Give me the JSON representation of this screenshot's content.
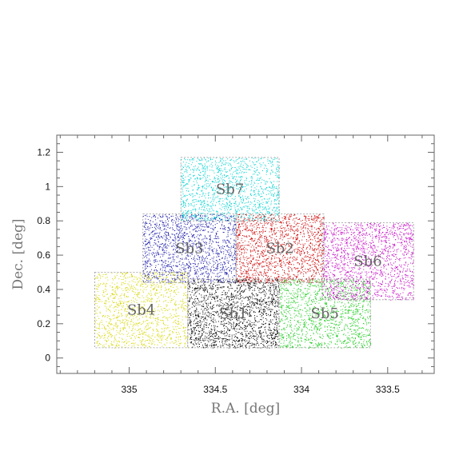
{
  "chart_data": {
    "type": "scatter",
    "title": "",
    "xlabel": "R.A. [deg]",
    "ylabel": "Dec. [deg]",
    "xlim": [
      335.42,
      333.23
    ],
    "ylim": [
      -0.09,
      1.3
    ],
    "x_reversed": true,
    "x_ticks": [
      335,
      334.5,
      334,
      333.5
    ],
    "x_tick_labels": [
      "335",
      "334.5",
      "334",
      "333.5"
    ],
    "y_ticks": [
      0,
      0.2,
      0.4,
      0.6,
      0.8,
      1,
      1.2
    ],
    "y_tick_labels": [
      "0",
      "0.2",
      "0.4",
      "0.6",
      "0.8",
      "1",
      "1.2"
    ],
    "grid": false,
    "fields": [
      {
        "label": "Sb1",
        "ra_range": [
          334.66,
          334.13
        ],
        "dec_range": [
          0.06,
          0.46
        ],
        "color": "#000000",
        "density": 1700
      },
      {
        "label": "Sb2",
        "ra_range": [
          334.38,
          333.87
        ],
        "dec_range": [
          0.44,
          0.84
        ],
        "color": "#cc0000",
        "density": 1500
      },
      {
        "label": "Sb3",
        "ra_range": [
          334.92,
          334.38
        ],
        "dec_range": [
          0.44,
          0.84
        ],
        "color": "#1a1aa8",
        "density": 1500
      },
      {
        "label": "Sb4",
        "ra_range": [
          335.2,
          334.66
        ],
        "dec_range": [
          0.06,
          0.5
        ],
        "color": "#d6d600",
        "density": 1300
      },
      {
        "label": "Sb5",
        "ra_range": [
          334.13,
          333.6
        ],
        "dec_range": [
          0.06,
          0.46
        ],
        "color": "#22cc22",
        "density": 1400
      },
      {
        "label": "Sb6",
        "ra_range": [
          333.88,
          333.35
        ],
        "dec_range": [
          0.34,
          0.79
        ],
        "color": "#c000c0",
        "density": 1500
      },
      {
        "label": "Sb7",
        "ra_range": [
          334.7,
          334.13
        ],
        "dec_range": [
          0.8,
          1.17
        ],
        "color": "#00d0d0",
        "density": 1300
      }
    ]
  }
}
